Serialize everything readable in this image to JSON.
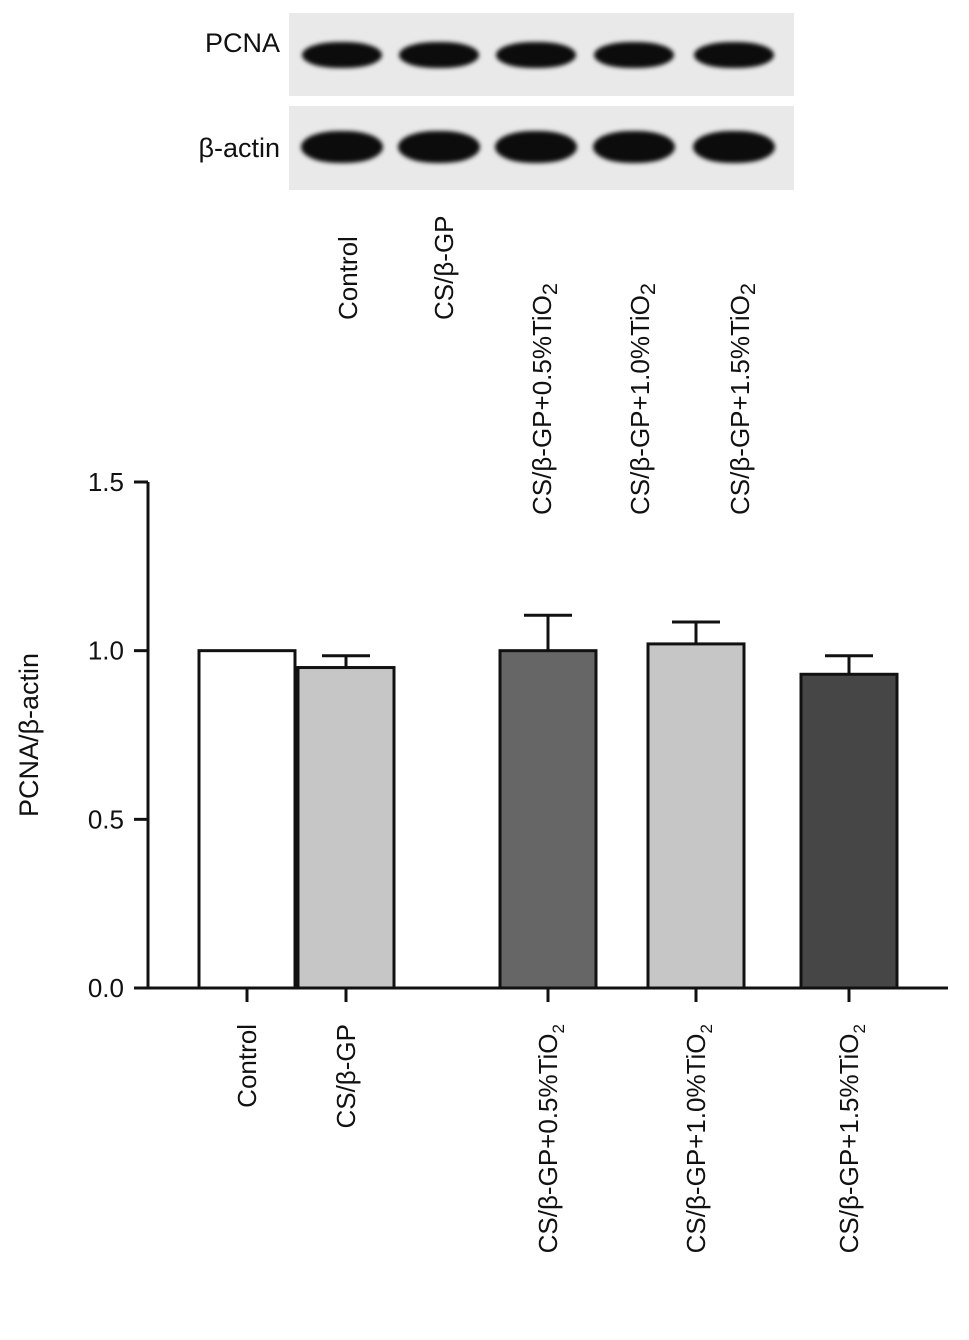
{
  "blot": {
    "rows": [
      {
        "label": "PCNA",
        "band_intensity": [
          1.0,
          1.0,
          1.0,
          1.0,
          1.0
        ]
      },
      {
        "label": "β-actin",
        "band_intensity": [
          1.0,
          1.0,
          1.0,
          1.0,
          1.0
        ]
      }
    ],
    "lanes": [
      {
        "base": "Control",
        "sub": ""
      },
      {
        "base": "CS/β-GP",
        "sub": ""
      },
      {
        "base": "CS/β-GP+0.5%TiO",
        "sub": "2"
      },
      {
        "base": "CS/β-GP+1.0%TiO",
        "sub": "2"
      },
      {
        "base": "CS/β-GP+1.5%TiO",
        "sub": "2"
      }
    ]
  },
  "chart_data": {
    "type": "bar",
    "title": "",
    "xlabel": "",
    "ylabel": "PCNA/β-actin",
    "ylim": [
      0,
      1.5
    ],
    "yticks": [
      "0.0",
      "0.5",
      "1.0",
      "1.5"
    ],
    "categories": [
      {
        "base": "Control",
        "sub": ""
      },
      {
        "base": "CS/β-GP",
        "sub": ""
      },
      {
        "base": "CS/β-GP+0.5%TiO",
        "sub": "2"
      },
      {
        "base": "CS/β-GP+1.0%TiO",
        "sub": "2"
      },
      {
        "base": "CS/β-GP+1.5%TiO",
        "sub": "2"
      }
    ],
    "values": [
      1.0,
      0.95,
      1.0,
      1.02,
      0.93
    ],
    "errors": [
      0.0,
      0.035,
      0.105,
      0.065,
      0.055
    ],
    "bar_colors": [
      "#ffffff",
      "#c6c6c6",
      "#666666",
      "#c6c6c6",
      "#464646"
    ],
    "grid": false,
    "legend": "none"
  }
}
